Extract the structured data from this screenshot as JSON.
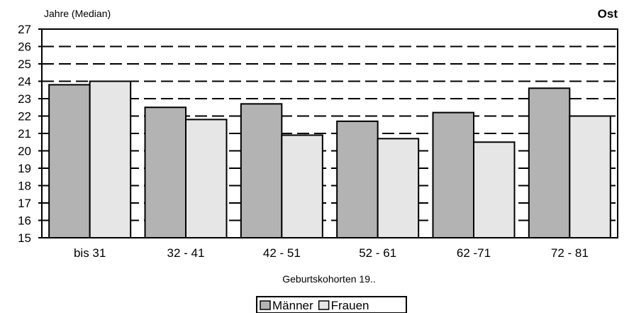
{
  "chart_data": {
    "type": "bar",
    "title": "Ost",
    "ylabel": "Jahre (Median)",
    "xlabel": "Geburtskohorten 19..",
    "categories": [
      "bis 31",
      "32 - 41",
      "42 - 51",
      "52 - 61",
      "62 -71",
      "72 - 81"
    ],
    "series": [
      {
        "name": "Männer",
        "color": "#b3b3b3",
        "values": [
          23.8,
          22.5,
          22.7,
          21.7,
          22.2,
          23.6
        ]
      },
      {
        "name": "Frauen",
        "color": "#e6e6e6",
        "values": [
          24.0,
          21.8,
          20.9,
          20.7,
          20.5,
          22.0
        ]
      }
    ],
    "ylim": [
      15,
      27
    ],
    "yticks": [
      15,
      16,
      17,
      18,
      19,
      20,
      21,
      22,
      23,
      24,
      25,
      26,
      27
    ],
    "grid": "dashed horizontal",
    "legend_position": "bottom"
  }
}
